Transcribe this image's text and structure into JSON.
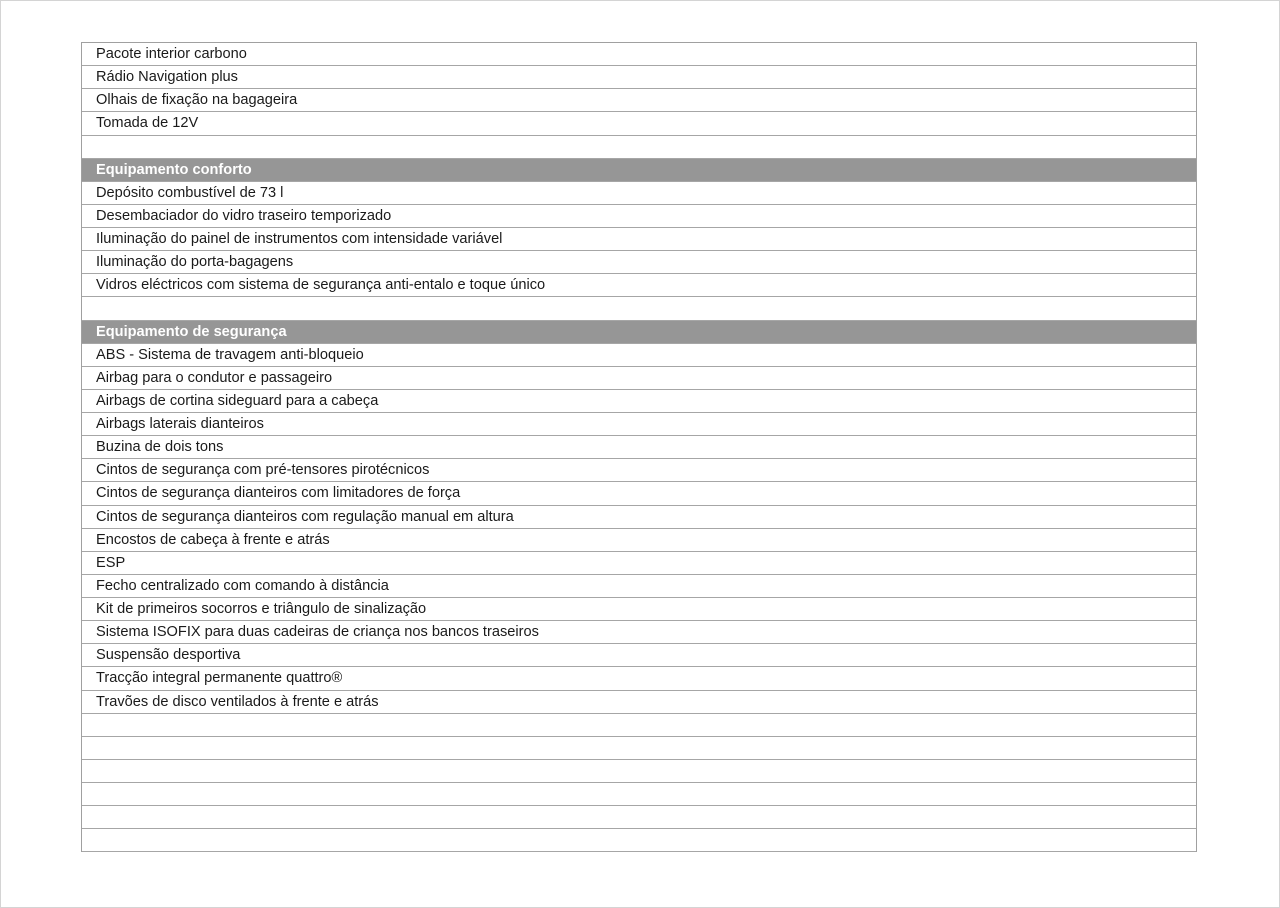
{
  "rows": [
    {
      "type": "item",
      "text": "Pacote interior carbono"
    },
    {
      "type": "item",
      "text": "Rádio Navigation plus"
    },
    {
      "type": "item",
      "text": "Olhais de fixação na bagageira"
    },
    {
      "type": "item",
      "text": "Tomada de 12V"
    },
    {
      "type": "blank",
      "text": ""
    },
    {
      "type": "header",
      "text": "Equipamento conforto"
    },
    {
      "type": "item",
      "text": "Depósito combustível de 73 l"
    },
    {
      "type": "item",
      "text": "Desembaciador do vidro traseiro temporizado"
    },
    {
      "type": "item",
      "text": "Iluminação do painel de instrumentos com intensidade variável"
    },
    {
      "type": "item",
      "text": "Iluminação do porta-bagagens"
    },
    {
      "type": "item",
      "text": "Vidros eléctricos com sistema de segurança anti-entalo e toque único"
    },
    {
      "type": "blank",
      "text": ""
    },
    {
      "type": "header",
      "text": "Equipamento de segurança"
    },
    {
      "type": "item",
      "text": "ABS - Sistema de travagem anti-bloqueio"
    },
    {
      "type": "item",
      "text": "Airbag para o condutor e passageiro"
    },
    {
      "type": "item",
      "text": "Airbags de cortina sideguard para a cabeça"
    },
    {
      "type": "item",
      "text": "Airbags laterais dianteiros"
    },
    {
      "type": "item",
      "text": "Buzina de dois tons"
    },
    {
      "type": "item",
      "text": "Cintos de segurança com pré-tensores pirotécnicos"
    },
    {
      "type": "item",
      "text": "Cintos de segurança dianteiros com limitadores de força"
    },
    {
      "type": "item",
      "text": "Cintos de segurança dianteiros com regulação manual em altura"
    },
    {
      "type": "item",
      "text": "Encostos de cabeça à frente e atrás"
    },
    {
      "type": "item",
      "text": "ESP"
    },
    {
      "type": "item",
      "text": "Fecho centralizado com comando à distância"
    },
    {
      "type": "item",
      "text": "Kit de primeiros socorros e triângulo de sinalização"
    },
    {
      "type": "item",
      "text": "Sistema ISOFIX para duas cadeiras de criança nos bancos traseiros"
    },
    {
      "type": "item",
      "text": "Suspensão desportiva"
    },
    {
      "type": "item",
      "text": "Tracção integral permanente quattro®"
    },
    {
      "type": "item",
      "text": "Travões de disco ventilados à frente e atrás"
    },
    {
      "type": "blank",
      "text": ""
    },
    {
      "type": "blank",
      "text": ""
    },
    {
      "type": "blank",
      "text": ""
    },
    {
      "type": "blank",
      "text": ""
    },
    {
      "type": "blank",
      "text": ""
    },
    {
      "type": "blank",
      "text": ""
    }
  ],
  "colors": {
    "header_fill": "#969696",
    "border": "#a6a6a6"
  }
}
